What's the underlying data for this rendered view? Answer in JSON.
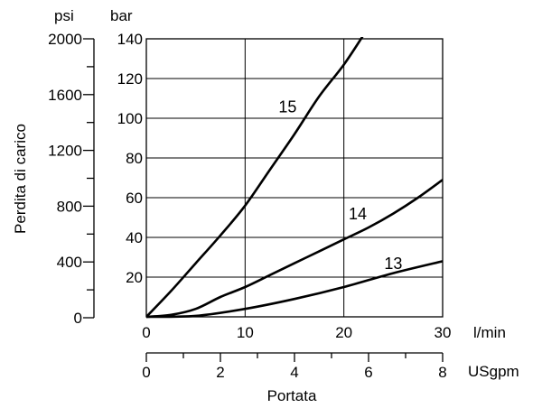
{
  "chart_data": {
    "type": "line",
    "xlabel": "Portata",
    "ylabel": "Perdita di carico",
    "x_unit_primary": "l/min",
    "x_unit_secondary": "USgpm",
    "y_unit_primary": "bar",
    "y_unit_secondary": "psi",
    "xlim": [
      0,
      30
    ],
    "ylim": [
      0,
      140
    ],
    "x_ticks_primary": [
      "0",
      "10",
      "20",
      "30"
    ],
    "x_ticks_secondary": [
      "0",
      "2",
      "4",
      "6",
      "8"
    ],
    "y_ticks_primary": [
      "20",
      "40",
      "60",
      "80",
      "100",
      "120",
      "140"
    ],
    "y_ticks_secondary": [
      "0",
      "400",
      "800",
      "1200",
      "1600",
      "2000"
    ],
    "grid": true,
    "series": [
      {
        "name": "15",
        "x": [
          0,
          2.5,
          5,
          7.5,
          10,
          12.5,
          15,
          17.5,
          20,
          22
        ],
        "y": [
          0,
          13,
          27,
          41,
          56,
          74,
          92,
          111,
          127,
          142
        ]
      },
      {
        "name": "14",
        "x": [
          0,
          2.5,
          5,
          7.5,
          10,
          12.5,
          15,
          17.5,
          20,
          22.5,
          25,
          27.5,
          30
        ],
        "y": [
          0,
          1,
          4,
          10,
          15,
          21,
          27,
          33,
          39,
          45,
          52,
          60,
          69
        ]
      },
      {
        "name": "13",
        "x": [
          0,
          5,
          10,
          15,
          20,
          25,
          30
        ],
        "y": [
          0,
          0.5,
          4,
          9,
          15,
          22,
          28
        ]
      }
    ]
  }
}
